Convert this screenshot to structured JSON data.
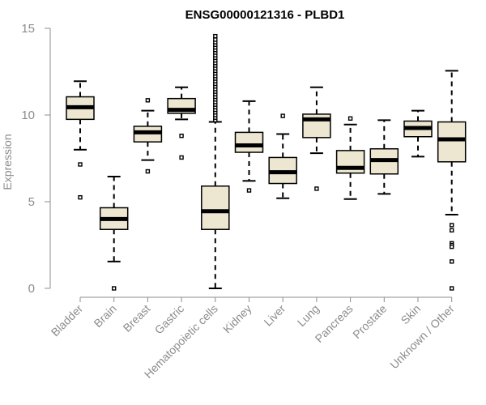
{
  "chart_data": {
    "type": "boxplot",
    "title": "ENSG00000121316 - PLBD1",
    "xlabel": "",
    "ylabel": "Expression",
    "ylim": [
      0,
      15
    ],
    "yticks": [
      0,
      5,
      10,
      15
    ],
    "grid": false,
    "legend": "none",
    "colors": {
      "box_fill": "#ede6d0",
      "box_stroke": "#000000",
      "median": "#000000",
      "axis": "#8c8c8c",
      "tick_label": "#8c8c8c"
    },
    "categories": [
      "Bladder",
      "Brain",
      "Breast",
      "Gastric",
      "Hematopoietic cells",
      "Kidney",
      "Liver",
      "Lung",
      "Pancreas",
      "Prostate",
      "Skin",
      "Unknown / Other"
    ],
    "boxes": [
      {
        "whisker_low": 8.0,
        "q1": 9.75,
        "median": 10.45,
        "q3": 11.05,
        "whisker_high": 11.95,
        "outliers": [
          7.15,
          5.25
        ]
      },
      {
        "whisker_low": 1.55,
        "q1": 3.4,
        "median": 4.0,
        "q3": 4.65,
        "whisker_high": 6.45,
        "outliers": [
          0.0
        ]
      },
      {
        "whisker_low": 7.4,
        "q1": 8.45,
        "median": 9.0,
        "q3": 9.35,
        "whisker_high": 10.25,
        "outliers": [
          10.85,
          6.75
        ]
      },
      {
        "whisker_low": 9.75,
        "q1": 10.1,
        "median": 10.3,
        "q3": 10.95,
        "whisker_high": 11.6,
        "outliers": [
          8.8,
          7.55
        ]
      },
      {
        "whisker_low": 0.0,
        "q1": 3.4,
        "median": 4.45,
        "q3": 5.9,
        "whisker_high": 9.6,
        "outliers": [
          9.7,
          9.85,
          10.0,
          10.15,
          10.3,
          10.45,
          10.6,
          10.75,
          10.9,
          11.05,
          11.2,
          11.35,
          11.5,
          11.65,
          11.8,
          11.95,
          12.1,
          12.25,
          12.4,
          12.55,
          12.7,
          12.85,
          13.0,
          13.15,
          13.3,
          13.45,
          13.6,
          13.75,
          13.9,
          14.05,
          14.2,
          14.35,
          14.55
        ]
      },
      {
        "whisker_low": 6.2,
        "q1": 7.85,
        "median": 8.25,
        "q3": 9.0,
        "whisker_high": 10.8,
        "outliers": [
          5.65
        ]
      },
      {
        "whisker_low": 5.2,
        "q1": 6.05,
        "median": 6.7,
        "q3": 7.55,
        "whisker_high": 8.9,
        "outliers": [
          9.95
        ]
      },
      {
        "whisker_low": 7.8,
        "q1": 8.7,
        "median": 9.75,
        "q3": 10.05,
        "whisker_high": 11.6,
        "outliers": [
          5.75
        ]
      },
      {
        "whisker_low": 5.15,
        "q1": 6.65,
        "median": 6.95,
        "q3": 7.95,
        "whisker_high": 9.45,
        "outliers": [
          9.8
        ]
      },
      {
        "whisker_low": 5.45,
        "q1": 6.6,
        "median": 7.4,
        "q3": 8.05,
        "whisker_high": 9.7,
        "outliers": []
      },
      {
        "whisker_low": 7.6,
        "q1": 8.75,
        "median": 9.25,
        "q3": 9.65,
        "whisker_high": 10.25,
        "outliers": []
      },
      {
        "whisker_low": 4.25,
        "q1": 7.3,
        "median": 8.6,
        "q3": 9.6,
        "whisker_high": 12.55,
        "outliers": [
          3.65,
          3.35,
          2.6,
          2.5,
          2.4,
          1.55,
          0.0
        ]
      }
    ]
  }
}
